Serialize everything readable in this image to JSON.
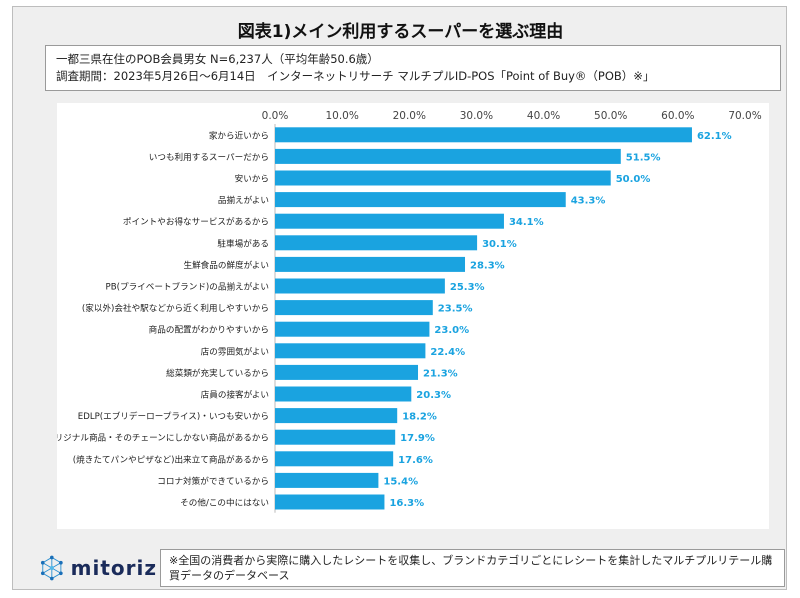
{
  "header": {
    "title": "図表1)メイン利用するスーパーを選ぶ理由"
  },
  "info": {
    "line1": "一都三県在住のPOB会員男女 N=6,237人（平均年齢50.6歳）",
    "line2": "調査期間：2023年5月26日～6月14日　インターネットリサーチ マルチプルID-POS「Point of Buy®（POB）※」"
  },
  "footer": {
    "logo_text": "mitoriz",
    "note": "※全国の消費者から実際に購入したレシートを収集し、ブランドカテゴリごとにレシートを集計したマルチプルリテール購買データのデータベース"
  },
  "colors": {
    "bar": "#1aa3e0",
    "value_label": "#1aa3e0",
    "frame_bg": "#efefef"
  },
  "chart_data": {
    "type": "bar",
    "orientation": "horizontal",
    "categories": [
      "家から近いから",
      "いつも利用するスーパーだから",
      "安いから",
      "品揃えがよい",
      "ポイントやお得なサービスがあるから",
      "駐車場がある",
      "生鮮食品の鮮度がよい",
      "PB(プライベートブランド)の品揃えがよい",
      "(家以外)会社や駅などから近く利用しやすいから",
      "商品の配置がわかりやすいから",
      "店の雰囲気がよい",
      "総菜類が充実しているから",
      "店員の接客がよい",
      "EDLP(エブリデーロープライス)・いつも安いから",
      "オリジナル商品・そのチェーンにしかない商品があるから",
      "(焼きたてパンやピザなど)出来立て商品があるから",
      "コロナ対策ができているから",
      "その他/この中にはない"
    ],
    "values": [
      62.1,
      51.5,
      50.0,
      43.3,
      34.1,
      30.1,
      28.3,
      25.3,
      23.5,
      23.0,
      22.4,
      21.3,
      20.3,
      18.2,
      17.9,
      17.6,
      15.4,
      16.3
    ],
    "value_labels": [
      "62.1%",
      "51.5%",
      "50.0%",
      "43.3%",
      "34.1%",
      "30.1%",
      "28.3%",
      "25.3%",
      "23.5%",
      "23.0%",
      "22.4%",
      "21.3%",
      "20.3%",
      "18.2%",
      "17.9%",
      "17.6%",
      "15.4%",
      "16.3%"
    ],
    "xlim": [
      0,
      70
    ],
    "x_ticks": [
      "0.0%",
      "10.0%",
      "20.0%",
      "30.0%",
      "40.0%",
      "50.0%",
      "60.0%",
      "70.0%"
    ],
    "grid": false,
    "legend": "none"
  }
}
